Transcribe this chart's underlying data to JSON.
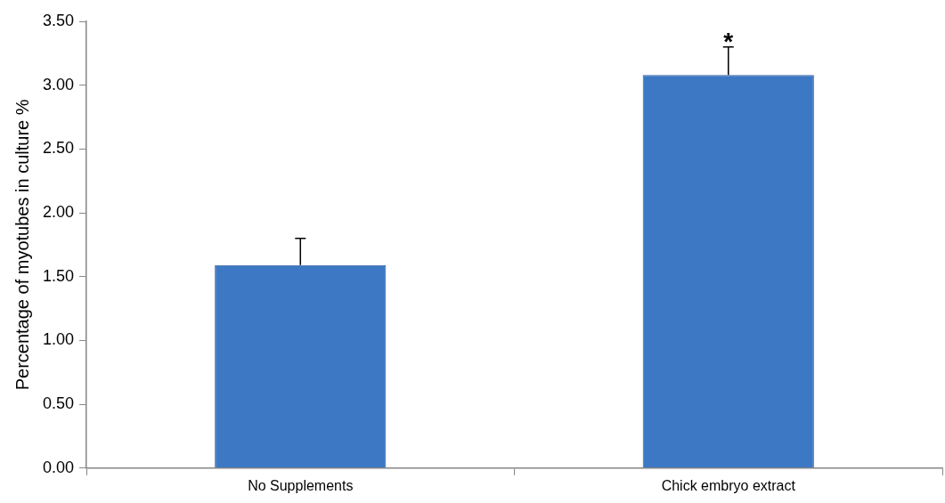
{
  "chart_data": {
    "type": "bar",
    "ylabel": "Percentage of myotubes in culture %",
    "categories": [
      "No Supplements",
      "Chick embryo extract"
    ],
    "values": [
      1.59,
      3.08
    ],
    "errors": [
      0.21,
      0.22
    ],
    "color": "#3d78c4",
    "ylim": [
      0,
      3.5
    ],
    "yticks": [
      {
        "value": 0,
        "label": "0.00"
      },
      {
        "value": 0.5,
        "label": "0.50"
      },
      {
        "value": 1,
        "label": "1.00"
      },
      {
        "value": 1.5,
        "label": "1.50"
      },
      {
        "value": 2,
        "label": "2.00"
      },
      {
        "value": 2.5,
        "label": "2.50"
      },
      {
        "value": 3,
        "label": "3.00"
      },
      {
        "value": 3.5,
        "label": "3.50"
      }
    ],
    "annotations": [
      "*"
    ],
    "grid": false,
    "legend": false
  }
}
